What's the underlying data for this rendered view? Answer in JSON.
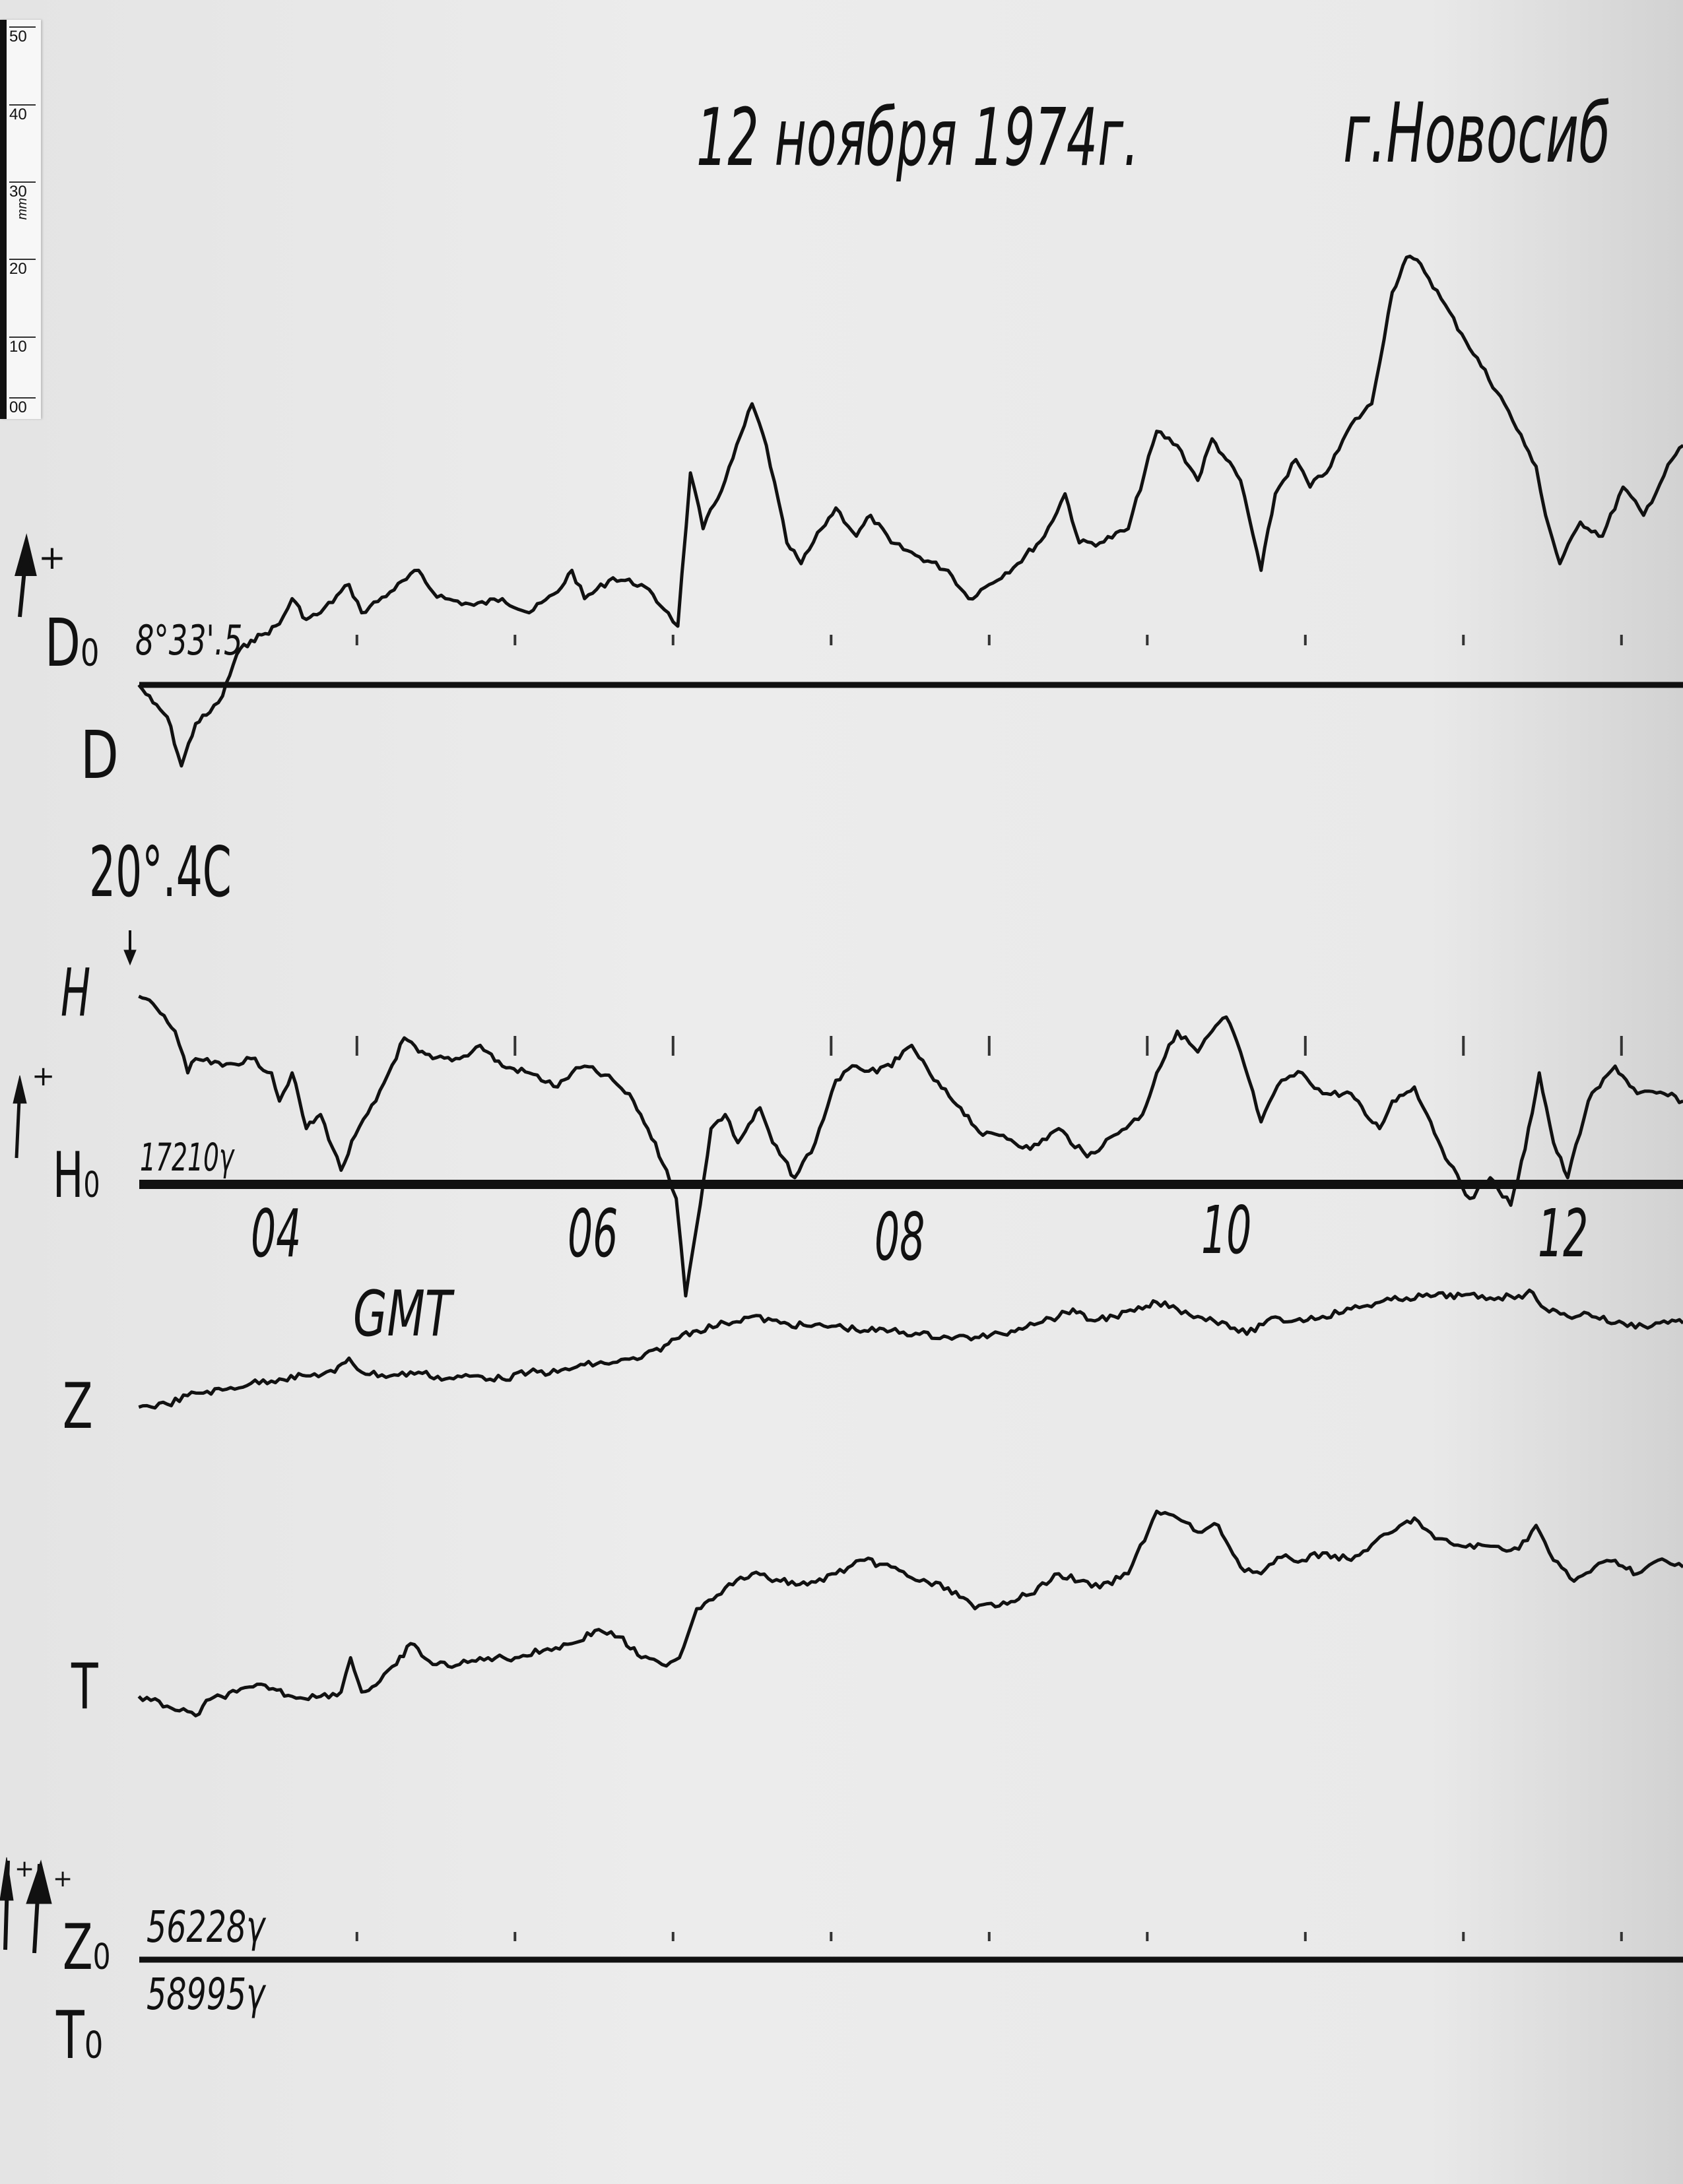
{
  "header": {
    "date": "12 ноября 1974г.",
    "city": "г.Новосиб"
  },
  "ruler": {
    "unit": "mm",
    "labels": [
      "50",
      "40",
      "30",
      "20",
      "10",
      "00"
    ]
  },
  "labels": {
    "plus": "+",
    "d_base": "D₀",
    "d_base_value": "8°33'.5",
    "d_trace": "D",
    "temperature": "20°.4C",
    "h_trace": "H",
    "h_base": "H₀",
    "h_base_value": "17210γ",
    "z_trace": "Z",
    "t_trace": "T",
    "z_base": "Z₀",
    "z_base_value": "56228γ",
    "t_base": "T₀",
    "t_base_value": "58995γ"
  },
  "chart_data": {
    "type": "line",
    "title": "12 ноября 1974г.",
    "xlabel": "GMT",
    "ylabel": "",
    "x_unit": "hours GMT",
    "y_unit": "mm deflection from baseline",
    "xlim": [
      3.07,
      12.84
    ],
    "x_ticks": [
      {
        "value": 4,
        "label": "04"
      },
      {
        "value": 6,
        "label": "06"
      },
      {
        "value": 8,
        "label": "08"
      },
      {
        "value": 10,
        "label": "10"
      },
      {
        "value": 12,
        "label": "12"
      }
    ],
    "grid": false,
    "trace_color": "#111111",
    "series": [
      {
        "name": "D",
        "baseline": "D₀ 8°33'.5",
        "points": [
          [
            3.07,
            0
          ],
          [
            3.16,
            -2.4
          ],
          [
            3.25,
            -4.3
          ],
          [
            3.34,
            -10.9
          ],
          [
            3.43,
            -5.2
          ],
          [
            3.52,
            -3.7
          ],
          [
            3.6,
            -1.5
          ],
          [
            3.69,
            4.1
          ],
          [
            3.78,
            6.0
          ],
          [
            3.87,
            6.9
          ],
          [
            3.96,
            8.2
          ],
          [
            4.04,
            11.6
          ],
          [
            4.13,
            8.8
          ],
          [
            4.22,
            9.7
          ],
          [
            4.4,
            13.5
          ],
          [
            4.48,
            9.7
          ],
          [
            4.66,
            12.5
          ],
          [
            4.84,
            15.4
          ],
          [
            4.93,
            12.5
          ],
          [
            5.01,
            11.6
          ],
          [
            5.19,
            10.7
          ],
          [
            5.37,
            11.6
          ],
          [
            5.54,
            9.7
          ],
          [
            5.72,
            12.5
          ],
          [
            5.81,
            15.4
          ],
          [
            5.89,
            11.6
          ],
          [
            6.07,
            14.4
          ],
          [
            6.25,
            13.5
          ],
          [
            6.42,
            9.7
          ],
          [
            6.48,
            7.9
          ],
          [
            6.56,
            28.5
          ],
          [
            6.64,
            21.0
          ],
          [
            6.78,
            27.5
          ],
          [
            6.95,
            37.8
          ],
          [
            7.04,
            32.2
          ],
          [
            7.17,
            19.1
          ],
          [
            7.26,
            16.3
          ],
          [
            7.39,
            21.0
          ],
          [
            7.48,
            23.8
          ],
          [
            7.61,
            20.0
          ],
          [
            7.7,
            22.8
          ],
          [
            7.83,
            19.1
          ],
          [
            8.01,
            17.2
          ],
          [
            8.19,
            15.4
          ],
          [
            8.32,
            11.6
          ],
          [
            8.45,
            13.5
          ],
          [
            8.63,
            16.3
          ],
          [
            8.8,
            20.0
          ],
          [
            8.93,
            25.7
          ],
          [
            9.02,
            19.1
          ],
          [
            9.15,
            19.1
          ],
          [
            9.33,
            21.0
          ],
          [
            9.51,
            34.1
          ],
          [
            9.64,
            32.2
          ],
          [
            9.77,
            27.5
          ],
          [
            9.86,
            33.1
          ],
          [
            9.95,
            30.3
          ],
          [
            10.04,
            27.5
          ],
          [
            10.17,
            15.4
          ],
          [
            10.26,
            25.7
          ],
          [
            10.39,
            30.3
          ],
          [
            10.48,
            26.6
          ],
          [
            10.61,
            29.4
          ],
          [
            10.74,
            35.0
          ],
          [
            10.87,
            37.8
          ],
          [
            11.0,
            52.8
          ],
          [
            11.09,
            57.5
          ],
          [
            11.18,
            56.6
          ],
          [
            11.31,
            51.9
          ],
          [
            11.44,
            47.2
          ],
          [
            11.71,
            37.8
          ],
          [
            11.84,
            32.2
          ],
          [
            11.91,
            29.4
          ],
          [
            11.97,
            22.8
          ],
          [
            12.06,
            16.3
          ],
          [
            12.19,
            21.9
          ],
          [
            12.33,
            20.0
          ],
          [
            12.46,
            26.6
          ],
          [
            12.59,
            22.8
          ],
          [
            12.77,
            30.3
          ],
          [
            12.84,
            32.2
          ]
        ]
      },
      {
        "name": "H",
        "baseline": "H₀ 17210γ",
        "points": [
          [
            3.07,
            25.3
          ],
          [
            3.16,
            24.3
          ],
          [
            3.3,
            20.6
          ],
          [
            3.38,
            15.0
          ],
          [
            3.43,
            16.9
          ],
          [
            3.6,
            15.9
          ],
          [
            3.78,
            16.9
          ],
          [
            3.91,
            15.0
          ],
          [
            3.96,
            11.2
          ],
          [
            4.04,
            15.0
          ],
          [
            4.13,
            7.5
          ],
          [
            4.22,
            9.4
          ],
          [
            4.35,
            1.9
          ],
          [
            4.44,
            6.6
          ],
          [
            4.57,
            11.2
          ],
          [
            4.75,
            19.7
          ],
          [
            4.84,
            17.8
          ],
          [
            4.93,
            16.9
          ],
          [
            5.1,
            16.9
          ],
          [
            5.23,
            18.7
          ],
          [
            5.37,
            15.9
          ],
          [
            5.54,
            15.0
          ],
          [
            5.72,
            13.1
          ],
          [
            5.81,
            15.0
          ],
          [
            5.89,
            15.9
          ],
          [
            6.07,
            14.0
          ],
          [
            6.2,
            11.2
          ],
          [
            6.29,
            7.5
          ],
          [
            6.41,
            1.9
          ],
          [
            6.47,
            -1.9
          ],
          [
            6.53,
            -15.0
          ],
          [
            6.6,
            -5.6
          ],
          [
            6.69,
            7.5
          ],
          [
            6.78,
            9.4
          ],
          [
            6.86,
            5.6
          ],
          [
            7.0,
            10.3
          ],
          [
            7.08,
            5.6
          ],
          [
            7.22,
            0.9
          ],
          [
            7.35,
            5.6
          ],
          [
            7.48,
            14.0
          ],
          [
            7.61,
            15.9
          ],
          [
            7.74,
            15.0
          ],
          [
            7.88,
            16.9
          ],
          [
            7.96,
            18.7
          ],
          [
            8.1,
            14.0
          ],
          [
            8.27,
            10.3
          ],
          [
            8.41,
            6.6
          ],
          [
            8.54,
            6.6
          ],
          [
            8.71,
            4.7
          ],
          [
            8.89,
            7.5
          ],
          [
            9.07,
            3.7
          ],
          [
            9.24,
            6.6
          ],
          [
            9.42,
            9.4
          ],
          [
            9.51,
            15.0
          ],
          [
            9.64,
            20.6
          ],
          [
            9.77,
            17.8
          ],
          [
            9.86,
            20.6
          ],
          [
            9.95,
            22.5
          ],
          [
            10.04,
            17.8
          ],
          [
            10.17,
            8.4
          ],
          [
            10.3,
            14.0
          ],
          [
            10.43,
            15.0
          ],
          [
            10.56,
            12.2
          ],
          [
            10.74,
            12.2
          ],
          [
            10.83,
            9.4
          ],
          [
            10.92,
            7.5
          ],
          [
            11.0,
            11.2
          ],
          [
            11.14,
            13.1
          ],
          [
            11.22,
            9.4
          ],
          [
            11.36,
            2.8
          ],
          [
            11.49,
            -1.9
          ],
          [
            11.62,
            0.9
          ],
          [
            11.75,
            -2.8
          ],
          [
            11.84,
            4.7
          ],
          [
            11.93,
            15.0
          ],
          [
            12.02,
            5.6
          ],
          [
            12.11,
            0.9
          ],
          [
            12.24,
            11.2
          ],
          [
            12.41,
            15.9
          ],
          [
            12.55,
            12.2
          ],
          [
            12.72,
            12.2
          ],
          [
            12.84,
            11.2
          ]
        ]
      },
      {
        "name": "Z",
        "baseline": "Z₀ 56228γ",
        "points": [
          [
            3.07,
            74.3
          ],
          [
            3.25,
            74.7
          ],
          [
            3.43,
            76.2
          ],
          [
            3.6,
            76.6
          ],
          [
            3.78,
            77.5
          ],
          [
            3.96,
            78.1
          ],
          [
            4.13,
            78.5
          ],
          [
            4.31,
            79.0
          ],
          [
            4.4,
            80.9
          ],
          [
            4.48,
            79.0
          ],
          [
            4.66,
            78.5
          ],
          [
            4.84,
            79.0
          ],
          [
            5.01,
            78.1
          ],
          [
            5.19,
            78.5
          ],
          [
            5.37,
            78.1
          ],
          [
            5.54,
            79.0
          ],
          [
            5.72,
            79.0
          ],
          [
            5.89,
            80.0
          ],
          [
            6.07,
            80.3
          ],
          [
            6.25,
            80.9
          ],
          [
            6.42,
            82.8
          ],
          [
            6.51,
            84.1
          ],
          [
            6.6,
            84.6
          ],
          [
            6.78,
            85.6
          ],
          [
            6.95,
            86.5
          ],
          [
            7.13,
            85.6
          ],
          [
            7.3,
            85.2
          ],
          [
            7.48,
            85.2
          ],
          [
            7.66,
            84.6
          ],
          [
            7.83,
            84.6
          ],
          [
            8.01,
            84.1
          ],
          [
            8.19,
            83.7
          ],
          [
            8.36,
            83.7
          ],
          [
            8.54,
            84.1
          ],
          [
            8.71,
            85.6
          ],
          [
            8.89,
            86.5
          ],
          [
            8.98,
            87.5
          ],
          [
            9.07,
            86.0
          ],
          [
            9.24,
            86.5
          ],
          [
            9.42,
            87.5
          ],
          [
            9.51,
            88.4
          ],
          [
            9.64,
            87.5
          ],
          [
            9.77,
            86.5
          ],
          [
            9.95,
            85.6
          ],
          [
            10.08,
            84.1
          ],
          [
            10.21,
            86.0
          ],
          [
            10.39,
            86.0
          ],
          [
            10.56,
            86.5
          ],
          [
            10.74,
            87.5
          ],
          [
            10.92,
            88.4
          ],
          [
            11.09,
            89.0
          ],
          [
            11.27,
            89.3
          ],
          [
            11.44,
            89.3
          ],
          [
            11.62,
            89.0
          ],
          [
            11.8,
            89.3
          ],
          [
            11.89,
            89.7
          ],
          [
            11.97,
            87.5
          ],
          [
            12.11,
            86.5
          ],
          [
            12.24,
            86.9
          ],
          [
            12.41,
            85.6
          ],
          [
            12.59,
            85.2
          ],
          [
            12.77,
            86.0
          ],
          [
            12.84,
            85.6
          ]
        ]
      },
      {
        "name": "T",
        "baseline": "T₀ 58995γ",
        "points": [
          [
            3.07,
            35.4
          ],
          [
            3.25,
            34.1
          ],
          [
            3.43,
            32.8
          ],
          [
            3.52,
            35.0
          ],
          [
            3.69,
            36.0
          ],
          [
            3.87,
            36.9
          ],
          [
            4.04,
            35.4
          ],
          [
            4.22,
            35.4
          ],
          [
            4.35,
            36.0
          ],
          [
            4.41,
            40.6
          ],
          [
            4.48,
            36.0
          ],
          [
            4.57,
            36.9
          ],
          [
            4.7,
            39.7
          ],
          [
            4.79,
            42.5
          ],
          [
            4.93,
            39.7
          ],
          [
            5.1,
            39.7
          ],
          [
            5.28,
            40.6
          ],
          [
            5.45,
            40.6
          ],
          [
            5.63,
            41.6
          ],
          [
            5.81,
            42.5
          ],
          [
            5.98,
            44.4
          ],
          [
            6.11,
            43.4
          ],
          [
            6.25,
            40.6
          ],
          [
            6.38,
            39.7
          ],
          [
            6.49,
            40.6
          ],
          [
            6.6,
            47.2
          ],
          [
            6.78,
            50.0
          ],
          [
            6.95,
            51.9
          ],
          [
            7.13,
            50.9
          ],
          [
            7.3,
            50.4
          ],
          [
            7.48,
            51.9
          ],
          [
            7.66,
            53.7
          ],
          [
            7.83,
            52.8
          ],
          [
            8.01,
            50.9
          ],
          [
            8.19,
            50.0
          ],
          [
            8.36,
            47.2
          ],
          [
            8.54,
            48.1
          ],
          [
            8.71,
            49.1
          ],
          [
            8.89,
            51.9
          ],
          [
            9.02,
            50.9
          ],
          [
            9.15,
            50.0
          ],
          [
            9.33,
            51.9
          ],
          [
            9.51,
            60.3
          ],
          [
            9.64,
            59.4
          ],
          [
            9.77,
            57.5
          ],
          [
            9.9,
            58.4
          ],
          [
            10.04,
            52.8
          ],
          [
            10.17,
            51.9
          ],
          [
            10.3,
            54.1
          ],
          [
            10.43,
            53.7
          ],
          [
            10.56,
            54.7
          ],
          [
            10.74,
            53.7
          ],
          [
            10.87,
            55.8
          ],
          [
            11.0,
            57.5
          ],
          [
            11.14,
            59.4
          ],
          [
            11.27,
            56.6
          ],
          [
            11.44,
            55.6
          ],
          [
            11.62,
            55.6
          ],
          [
            11.8,
            55.2
          ],
          [
            11.91,
            58.4
          ],
          [
            12.02,
            53.7
          ],
          [
            12.15,
            50.9
          ],
          [
            12.28,
            52.8
          ],
          [
            12.41,
            53.7
          ],
          [
            12.55,
            51.9
          ],
          [
            12.68,
            53.7
          ],
          [
            12.84,
            52.8
          ]
        ]
      }
    ]
  }
}
